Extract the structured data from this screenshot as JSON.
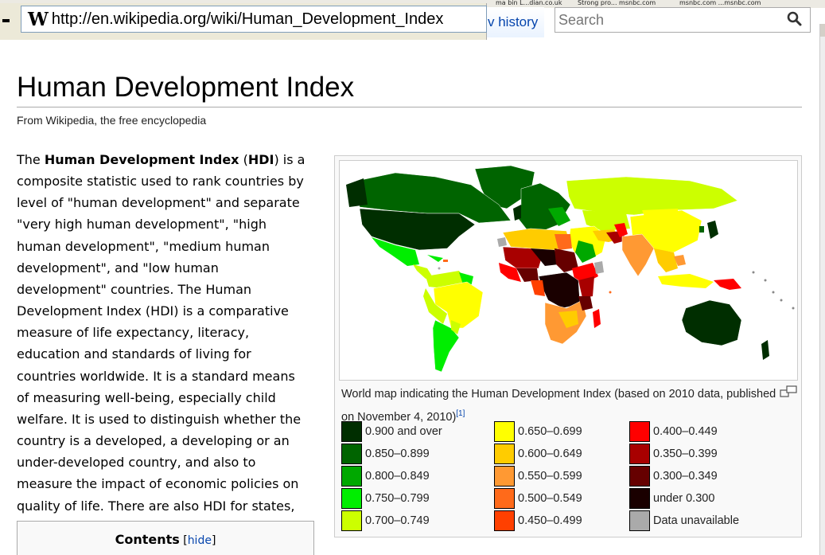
{
  "bookmarks": [
    "ma bin L...dian.co.uk",
    "Strong pro... msnbc.com",
    "msnbc.com ...msnbc.com"
  ],
  "browser": {
    "url": "http://en.wikipedia.org/wiki/Human_Development_Index",
    "url_icon": "wikipedia-w-icon"
  },
  "header": {
    "view_history": "v history",
    "search_placeholder": "Search"
  },
  "article": {
    "title": "Human Development Index",
    "subtitle": "From Wikipedia, the free encyclopedia",
    "intro_lead": "The ",
    "intro_bold1": "Human Development Index",
    "intro_mid": " (",
    "intro_bold2": "HDI",
    "intro_rest": ") is a composite statistic used to rank countries by level of \"human development\" and separate \"very high human development\", \"high human development\", \"medium human development\", and \"low human development\" countries. The Human Development Index (HDI) is a comparative measure of life expectancy, literacy, education and standards of living for countries worldwide. It is a standard means of measuring well-being, especially child welfare. It is used to distinguish whether the country is a developed, a developing or an under-developed country, and also to measure the impact of economic policies on quality of life. There are also HDI for states, cities, villages, etc. by local organizations or companies."
  },
  "toc": {
    "title": "Contents",
    "hide_open": " [",
    "hide_label": "hide",
    "hide_close": "]"
  },
  "figure": {
    "caption": "World map indicating the Human Development Index (based on 2010 data, published on November 4, 2010)",
    "ref": "[1]",
    "legend": [
      {
        "label": "0.900 and over",
        "color": "#002e00"
      },
      {
        "label": "0.850–0.899",
        "color": "#006400"
      },
      {
        "label": "0.800–0.849",
        "color": "#00a800"
      },
      {
        "label": "0.750–0.799",
        "color": "#00ee00"
      },
      {
        "label": "0.700–0.749",
        "color": "#ccff00"
      },
      {
        "label": "0.650–0.699",
        "color": "#ffff00"
      },
      {
        "label": "0.600–0.649",
        "color": "#ffcc00"
      },
      {
        "label": "0.550–0.599",
        "color": "#ff9933"
      },
      {
        "label": "0.500–0.549",
        "color": "#ff6a1a"
      },
      {
        "label": "0.450–0.499",
        "color": "#ff4000"
      },
      {
        "label": "0.400–0.449",
        "color": "#ff0000"
      },
      {
        "label": "0.350–0.399",
        "color": "#a80000"
      },
      {
        "label": "0.300–0.349",
        "color": "#660000"
      },
      {
        "label": "under 0.300",
        "color": "#1a0000"
      },
      {
        "label": "Data unavailable",
        "color": "#aaaaaa"
      }
    ]
  }
}
